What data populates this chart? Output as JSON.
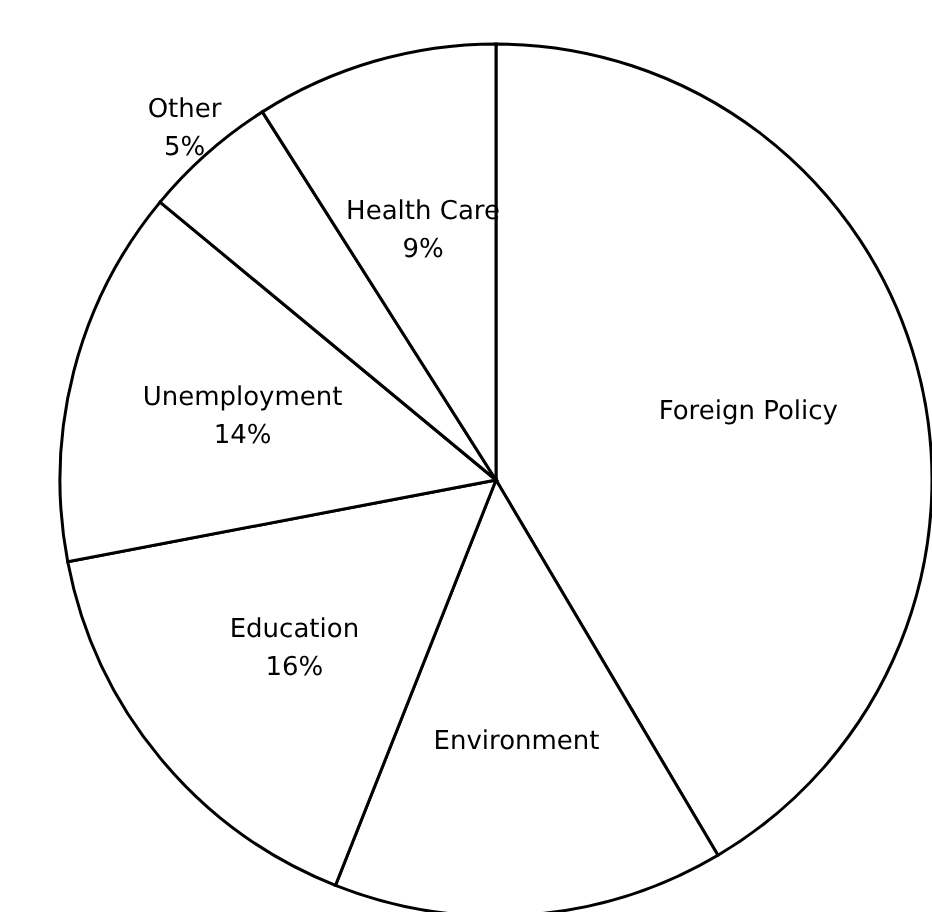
{
  "chart_data": {
    "type": "pie",
    "categories": [
      "Foreign Policy",
      "Environment",
      "Education",
      "Unemployment",
      "Other",
      "Health Care"
    ],
    "values": [
      41.5,
      14.5,
      16,
      14,
      5,
      9
    ],
    "value_labels": [
      null,
      null,
      "16%",
      "14%",
      "5%",
      "9%"
    ],
    "colors": [
      "#ffffff",
      "#ffffff",
      "#ffffff",
      "#ffffff",
      "#ffffff",
      "#ffffff"
    ]
  }
}
